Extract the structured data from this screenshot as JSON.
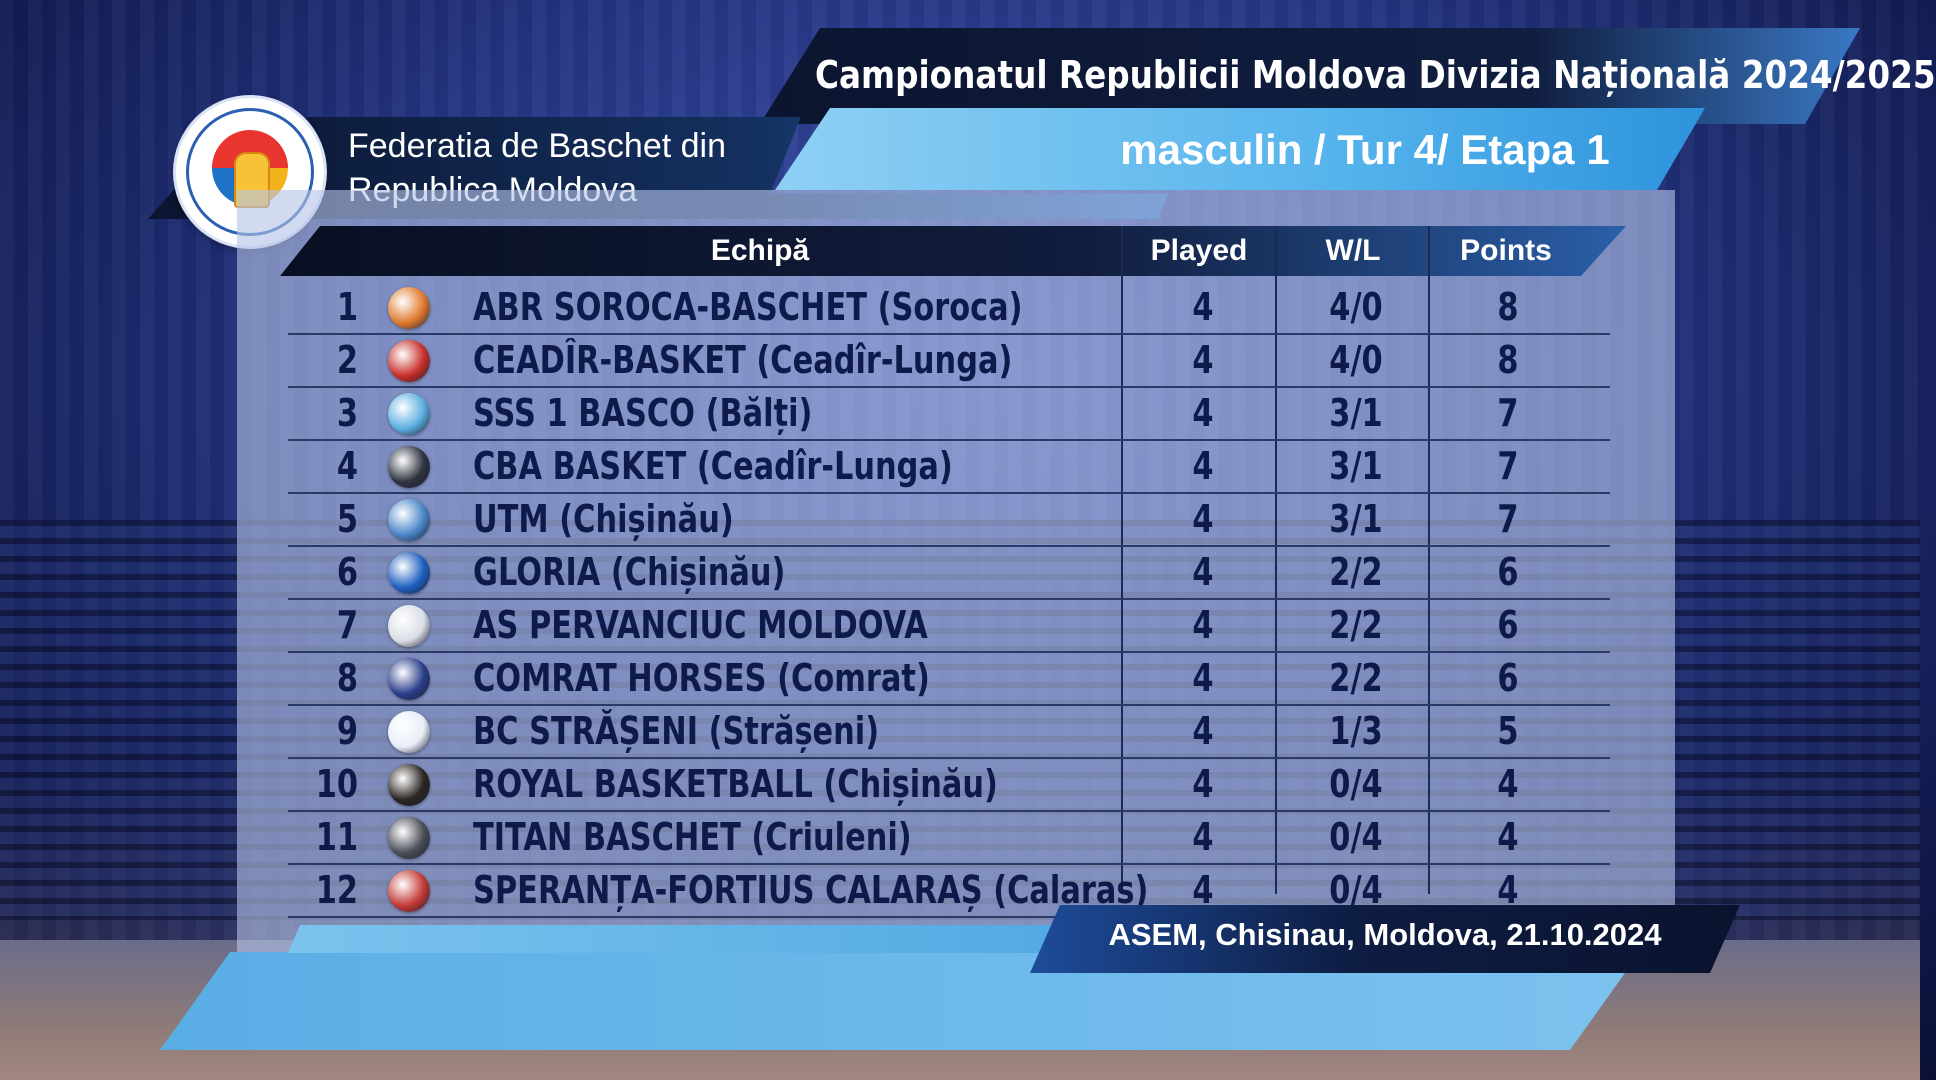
{
  "header": {
    "title": "Campionatul Republicii Moldova Divizia Națională 2024/2025",
    "subtitle": "masculin / Tur 4/ Etapa 1",
    "federation_line1": "Federatia de Baschet din",
    "federation_line2": "Republica Moldova",
    "logo_icon": "federation-logo-icon"
  },
  "table": {
    "columns": {
      "team": "Echipă",
      "played": "Played",
      "wl": "W/L",
      "points": "Points"
    },
    "rows": [
      {
        "rank": "1",
        "team": "ABR SOROCA-BASCHET (Soroca)",
        "played": "4",
        "wl": "4/0",
        "points": "8",
        "badge_color": "#e07a2f"
      },
      {
        "rank": "2",
        "team": "CEADÎR-BASKET (Ceadîr-Lunga)",
        "played": "4",
        "wl": "4/0",
        "points": "8",
        "badge_color": "#c8302a"
      },
      {
        "rank": "3",
        "team": "SSS 1 BASCO (Bălți)",
        "played": "4",
        "wl": "3/1",
        "points": "7",
        "badge_color": "#5aaee0"
      },
      {
        "rank": "4",
        "team": "CBA BASKET (Ceadîr-Lunga)",
        "played": "4",
        "wl": "3/1",
        "points": "7",
        "badge_color": "#2f3440"
      },
      {
        "rank": "5",
        "team": "UTM (Chișinău)",
        "played": "4",
        "wl": "3/1",
        "points": "7",
        "badge_color": "#4a86c8"
      },
      {
        "rank": "6",
        "team": "GLORIA (Chișinău)",
        "played": "4",
        "wl": "2/2",
        "points": "6",
        "badge_color": "#1f5fc0"
      },
      {
        "rank": "7",
        "team": "AS PERVANCIUC MOLDOVA",
        "played": "4",
        "wl": "2/2",
        "points": "6",
        "badge_color": "#d9dde5"
      },
      {
        "rank": "8",
        "team": "COMRAT HORSES (Comrat)",
        "played": "4",
        "wl": "2/2",
        "points": "6",
        "badge_color": "#2a3f8a"
      },
      {
        "rank": "9",
        "team": "BC STRĂȘENI (Strășeni)",
        "played": "4",
        "wl": "1/3",
        "points": "5",
        "badge_color": "#e8eef8"
      },
      {
        "rank": "10",
        "team": "ROYAL BASKETBALL (Chișinău)",
        "played": "4",
        "wl": "0/4",
        "points": "4",
        "badge_color": "#2b2622"
      },
      {
        "rank": "11",
        "team": "TITAN BASCHET (Criuleni)",
        "played": "4",
        "wl": "0/4",
        "points": "4",
        "badge_color": "#4a4e57"
      },
      {
        "rank": "12",
        "team": "SPERANȚA-FORTIUS CALARAȘ (Calaraș)",
        "played": "4",
        "wl": "0/4",
        "points": "4",
        "badge_color": "#c23a35"
      }
    ]
  },
  "footer": {
    "location": "ASEM, Chisinau, Moldova, 21.10.2024"
  }
}
